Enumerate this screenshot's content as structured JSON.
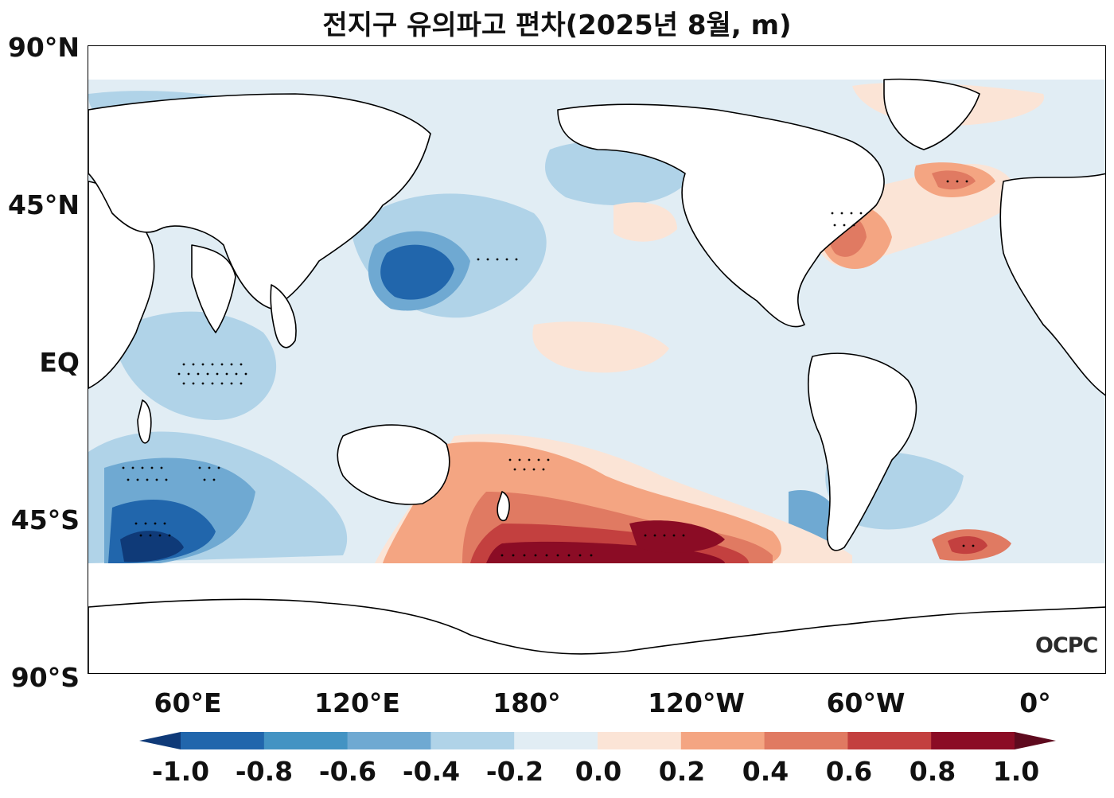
{
  "title": "전지구 유의파고 편차(2025년 8월, m)",
  "lat_ticks": [
    "90°N",
    "45°N",
    "EQ",
    "45°S",
    "90°S"
  ],
  "lon_ticks": [
    "60°E",
    "120°E",
    "180°",
    "120°W",
    "60°W",
    "0°"
  ],
  "colorbar": {
    "ticks": [
      "-1.0",
      "-0.8",
      "-0.6",
      "-0.4",
      "-0.2",
      "0.0",
      "0.2",
      "0.4",
      "0.6",
      "0.8",
      "1.0"
    ],
    "colors": [
      "#0f3a78",
      "#2166ac",
      "#4393c3",
      "#6fa9d2",
      "#b0d3e8",
      "#e1edf4",
      "#fbe4d6",
      "#f4a582",
      "#e07a62",
      "#c3403f",
      "#8b0c25",
      "#5e0a1e"
    ]
  },
  "logo": "OCPC"
}
